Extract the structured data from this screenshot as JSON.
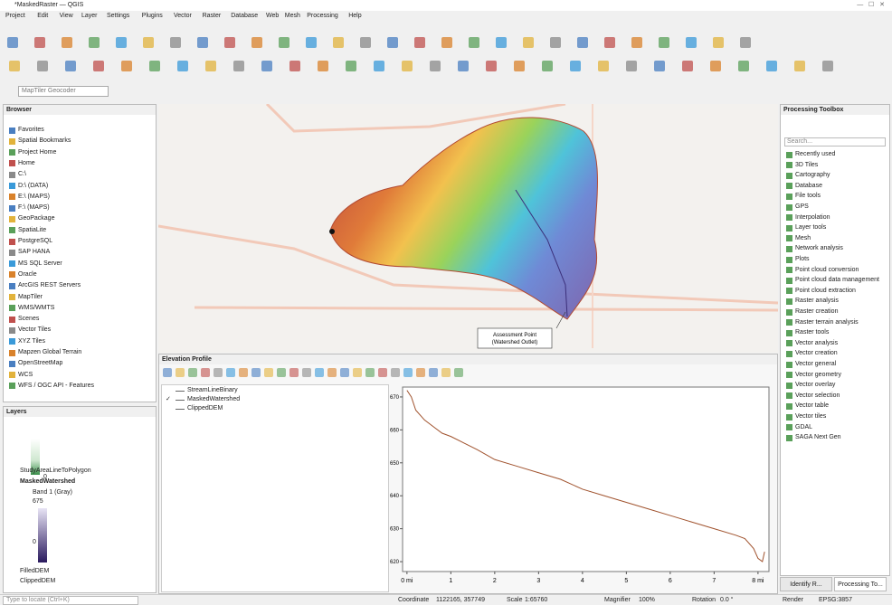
{
  "window": {
    "title": "*MaskedRaster — QGIS"
  },
  "menu": [
    "Project",
    "Edit",
    "View",
    "Layer",
    "Settings",
    "Plugins",
    "Vector",
    "Raster",
    "Database",
    "Web",
    "Mesh",
    "Processing",
    "Help"
  ],
  "locator_field": "MapTiler Geocoder",
  "browser": {
    "title": "Browser",
    "items": [
      "Favorites",
      "Spatial Bookmarks",
      "Project Home",
      "Home",
      "C:\\",
      "D:\\ (DATA)",
      "E:\\ (MAPS)",
      "F:\\ (MAPS)",
      "GeoPackage",
      "SpatiaLite",
      "PostgreSQL",
      "SAP HANA",
      "MS SQL Server",
      "Oracle",
      "ArcGIS REST Servers",
      "MapTiler",
      "WMS/WMTS",
      "Scenes",
      "Vector Tiles",
      "XYZ Tiles",
      "Mapzen Global Terrain",
      "OpenStreetMap",
      "WCS",
      "WFS / OGC API - Features"
    ]
  },
  "layers": {
    "title": "Layers",
    "ramp_min_top": "0",
    "items": [
      "StudyAreaLineToPolygon",
      "MaskedWatershed",
      "Band 1 (Gray)",
      "675",
      "0",
      "FilledDEM",
      "ClippedDEM"
    ]
  },
  "map": {
    "annotation": [
      "Assessment Point",
      "(Watershed Outlet)"
    ]
  },
  "elevation_profile": {
    "title": "Elevation Profile",
    "layers": [
      "StreamLineBinary",
      "MaskedWatershed",
      "ClippedDEM"
    ],
    "chart": {
      "type": "line",
      "color": "#a0522d",
      "x": [
        0,
        0.1,
        0.2,
        0.4,
        0.6,
        0.8,
        1.0,
        1.3,
        1.6,
        2.0,
        2.5,
        3.0,
        3.5,
        4.0,
        4.5,
        5.0,
        5.5,
        6.0,
        6.5,
        7.0,
        7.5,
        7.7,
        7.9,
        8.0,
        8.1,
        8.15
      ],
      "values": [
        672,
        670,
        666,
        663,
        661,
        659,
        658,
        656,
        654,
        651,
        649,
        647,
        645,
        642,
        640,
        638,
        636,
        634,
        632,
        630,
        628,
        627,
        624,
        621,
        620,
        623
      ],
      "xlim": [
        -0.1,
        8.25
      ],
      "ylim": [
        617,
        673
      ],
      "xticks": [
        {
          "value": 0,
          "label": "0 mi"
        },
        1,
        2,
        3,
        4,
        5,
        6,
        7,
        {
          "value": 8,
          "label": "8 mi"
        }
      ],
      "yticks": [
        620,
        630,
        640,
        650,
        660,
        670
      ],
      "grid": false
    }
  },
  "toolbox": {
    "title": "Processing Toolbox",
    "search": "Search...",
    "items": [
      "Recently used",
      "3D Tiles",
      "Cartography",
      "Database",
      "File tools",
      "GPS",
      "Interpolation",
      "Layer tools",
      "Mesh",
      "Network analysis",
      "Plots",
      "Point cloud conversion",
      "Point cloud data management",
      "Point cloud extraction",
      "Raster analysis",
      "Raster creation",
      "Raster terrain analysis",
      "Raster tools",
      "Vector analysis",
      "Vector creation",
      "Vector general",
      "Vector geometry",
      "Vector overlay",
      "Vector selection",
      "Vector table",
      "Vector tiles",
      "GDAL",
      "SAGA Next Gen"
    ]
  },
  "bottom_tabs": [
    "Identify R...",
    "Processing To..."
  ],
  "status": {
    "locator": "Type to locate (Ctrl+K)",
    "coordinate_label": "Coordinate",
    "coordinate": "1122165, 357749",
    "scale_label": "Scale",
    "scale": "1:65760",
    "magnifier_label": "Magnifier",
    "magnifier": "100%",
    "rotation_label": "Rotation",
    "rotation": "0.0 °",
    "render": "Render",
    "crs": "EPSG:3857"
  }
}
